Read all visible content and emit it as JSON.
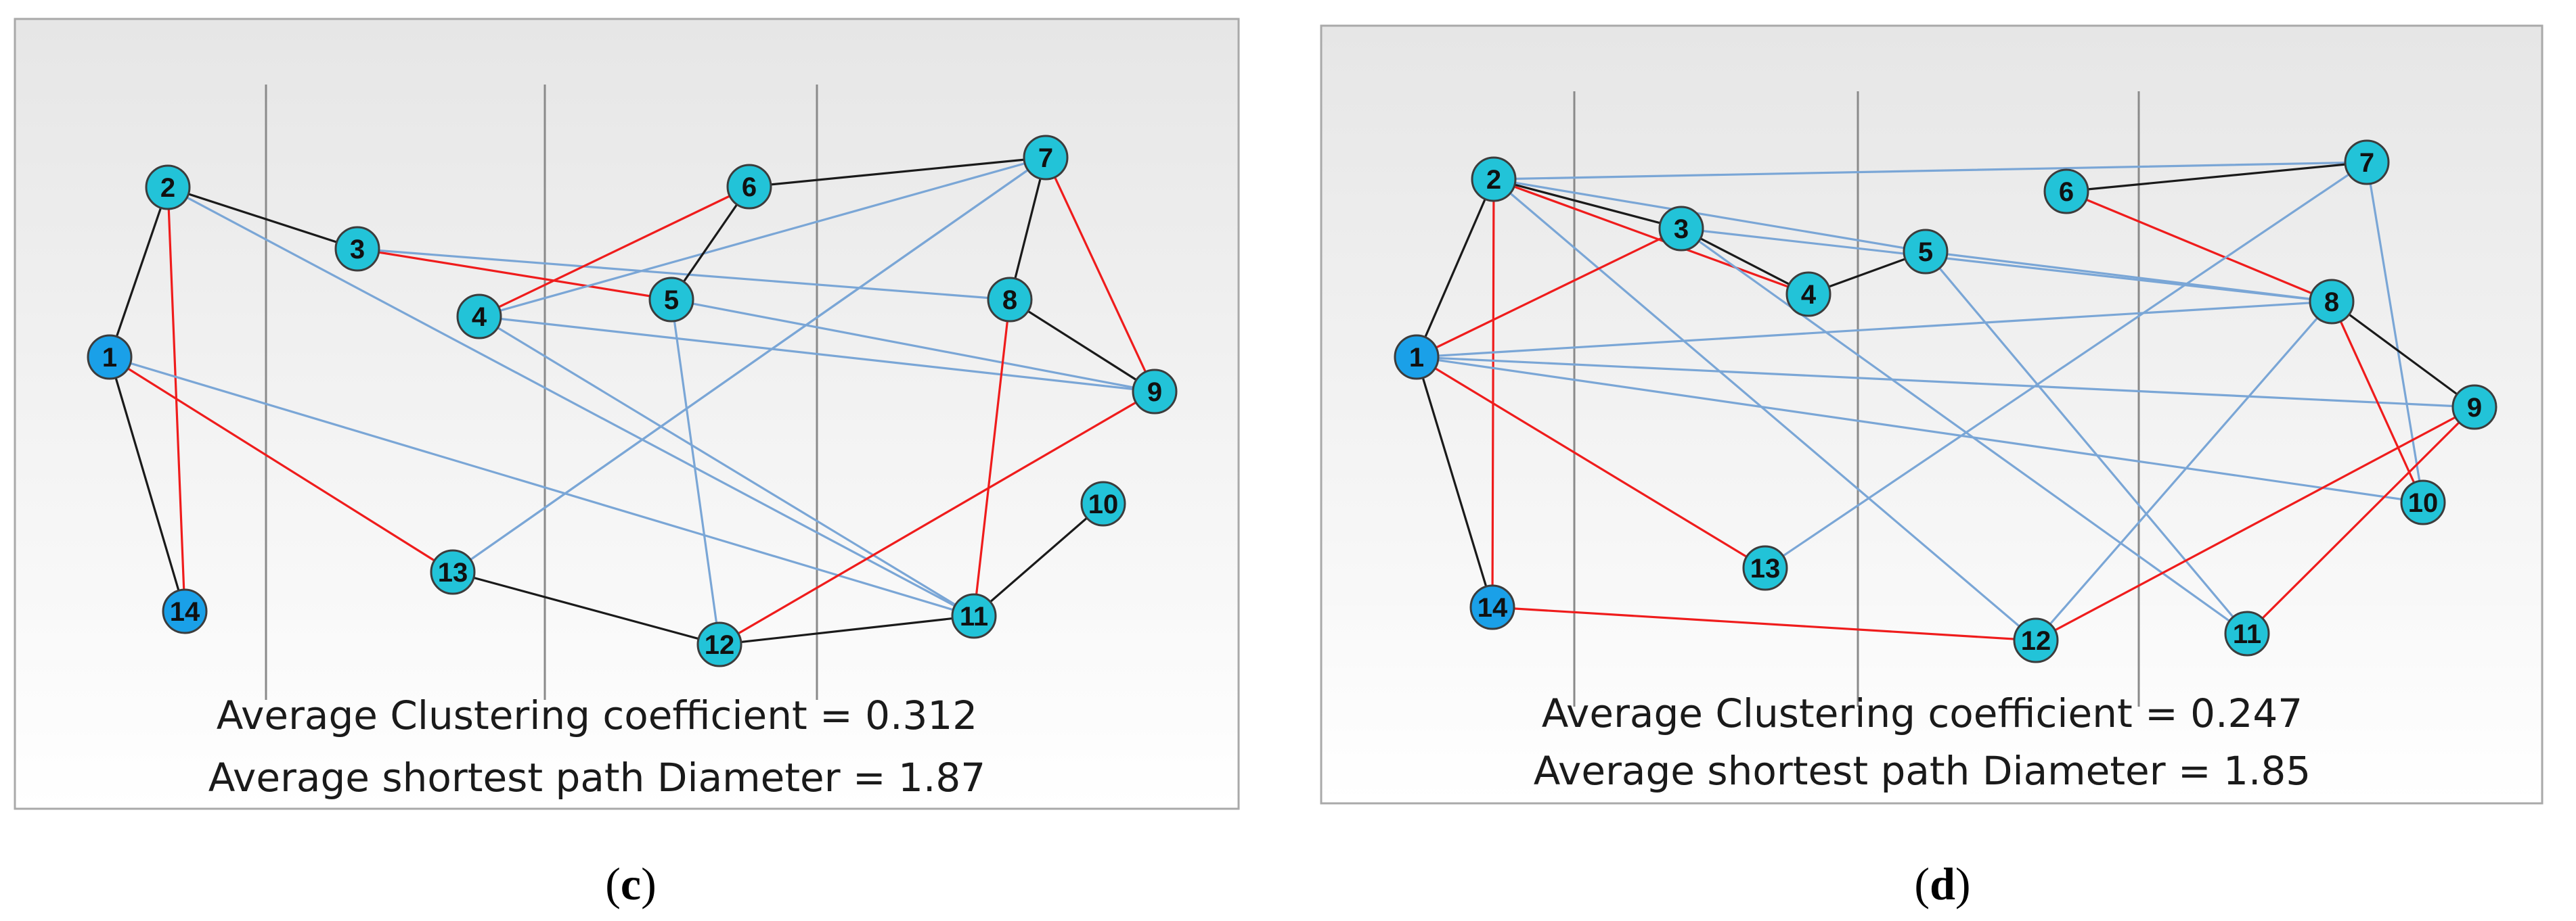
{
  "colors": {
    "red_edge": "#ef1c1c",
    "black_edge": "#1a1a1a",
    "blue_edge": "#7aa6d6",
    "node_cyan": "#22c3d8",
    "node_blue": "#1aa0e8"
  },
  "panels": [
    {
      "id": "c",
      "caption_letter": "c",
      "stats": {
        "clustering": "Average Clustering coefficient = 0.312",
        "shortest_path": "Average shortest path Diameter = 1.87"
      },
      "nodes": [
        {
          "id": "1",
          "label": "1",
          "tone": "blue"
        },
        {
          "id": "2",
          "label": "2",
          "tone": "cyan"
        },
        {
          "id": "3",
          "label": "3",
          "tone": "cyan"
        },
        {
          "id": "4",
          "label": "4",
          "tone": "cyan"
        },
        {
          "id": "5",
          "label": "5",
          "tone": "cyan"
        },
        {
          "id": "6",
          "label": "6",
          "tone": "cyan"
        },
        {
          "id": "7",
          "label": "7",
          "tone": "cyan"
        },
        {
          "id": "8",
          "label": "8",
          "tone": "cyan"
        },
        {
          "id": "9",
          "label": "9",
          "tone": "cyan"
        },
        {
          "id": "10",
          "label": "10",
          "tone": "cyan"
        },
        {
          "id": "11",
          "label": "11",
          "tone": "cyan"
        },
        {
          "id": "12",
          "label": "12",
          "tone": "cyan"
        },
        {
          "id": "13",
          "label": "13",
          "tone": "cyan"
        },
        {
          "id": "14",
          "label": "14",
          "tone": "blue"
        }
      ],
      "edges": [
        {
          "from": "1",
          "to": "2",
          "color": "black"
        },
        {
          "from": "1",
          "to": "14",
          "color": "black"
        },
        {
          "from": "2",
          "to": "14",
          "color": "red"
        },
        {
          "from": "2",
          "to": "3",
          "color": "black"
        },
        {
          "from": "2",
          "to": "11",
          "color": "blue"
        },
        {
          "from": "1",
          "to": "13",
          "color": "red"
        },
        {
          "from": "1",
          "to": "11",
          "color": "blue"
        },
        {
          "from": "3",
          "to": "5",
          "color": "red"
        },
        {
          "from": "3",
          "to": "8",
          "color": "blue"
        },
        {
          "from": "4",
          "to": "6",
          "color": "red"
        },
        {
          "from": "4",
          "to": "7",
          "color": "blue"
        },
        {
          "from": "4",
          "to": "9",
          "color": "blue"
        },
        {
          "from": "4",
          "to": "11",
          "color": "blue"
        },
        {
          "from": "5",
          "to": "6",
          "color": "black"
        },
        {
          "from": "5",
          "to": "12",
          "color": "blue"
        },
        {
          "from": "5",
          "to": "9",
          "color": "blue"
        },
        {
          "from": "6",
          "to": "7",
          "color": "black"
        },
        {
          "from": "7",
          "to": "8",
          "color": "black"
        },
        {
          "from": "7",
          "to": "9",
          "color": "red"
        },
        {
          "from": "7",
          "to": "13",
          "color": "blue"
        },
        {
          "from": "8",
          "to": "9",
          "color": "black"
        },
        {
          "from": "8",
          "to": "11",
          "color": "red"
        },
        {
          "from": "9",
          "to": "12",
          "color": "red"
        },
        {
          "from": "10",
          "to": "11",
          "color": "black"
        },
        {
          "from": "13",
          "to": "12",
          "color": "black"
        },
        {
          "from": "12",
          "to": "11",
          "color": "black"
        },
        {
          "from": "13",
          "to": "7",
          "color": "blue"
        }
      ]
    },
    {
      "id": "d",
      "caption_letter": "d",
      "stats": {
        "clustering": "Average Clustering coefficient = 0.247",
        "shortest_path": "Average shortest path Diameter = 1.85"
      },
      "nodes": [
        {
          "id": "1",
          "label": "1",
          "tone": "blue"
        },
        {
          "id": "2",
          "label": "2",
          "tone": "cyan"
        },
        {
          "id": "3",
          "label": "3",
          "tone": "cyan"
        },
        {
          "id": "4",
          "label": "4",
          "tone": "cyan"
        },
        {
          "id": "5",
          "label": "5",
          "tone": "cyan"
        },
        {
          "id": "6",
          "label": "6",
          "tone": "cyan"
        },
        {
          "id": "7",
          "label": "7",
          "tone": "cyan"
        },
        {
          "id": "8",
          "label": "8",
          "tone": "cyan"
        },
        {
          "id": "9",
          "label": "9",
          "tone": "cyan"
        },
        {
          "id": "10",
          "label": "10",
          "tone": "cyan"
        },
        {
          "id": "11",
          "label": "11",
          "tone": "cyan"
        },
        {
          "id": "12",
          "label": "12",
          "tone": "cyan"
        },
        {
          "id": "13",
          "label": "13",
          "tone": "cyan"
        },
        {
          "id": "14",
          "label": "14",
          "tone": "blue"
        }
      ],
      "edges": [
        {
          "from": "1",
          "to": "2",
          "color": "black"
        },
        {
          "from": "1",
          "to": "14",
          "color": "black"
        },
        {
          "from": "2",
          "to": "14",
          "color": "red"
        },
        {
          "from": "2",
          "to": "3",
          "color": "black"
        },
        {
          "from": "2",
          "to": "4",
          "color": "red"
        },
        {
          "from": "2",
          "to": "7",
          "color": "blue"
        },
        {
          "from": "2",
          "to": "5",
          "color": "blue"
        },
        {
          "from": "2",
          "to": "12",
          "color": "blue"
        },
        {
          "from": "1",
          "to": "3",
          "color": "red"
        },
        {
          "from": "1",
          "to": "13",
          "color": "red"
        },
        {
          "from": "1",
          "to": "8",
          "color": "blue"
        },
        {
          "from": "1",
          "to": "9",
          "color": "blue"
        },
        {
          "from": "1",
          "to": "10",
          "color": "blue"
        },
        {
          "from": "3",
          "to": "4",
          "color": "black"
        },
        {
          "from": "3",
          "to": "11",
          "color": "blue"
        },
        {
          "from": "4",
          "to": "5",
          "color": "black"
        },
        {
          "from": "5",
          "to": "8",
          "color": "blue"
        },
        {
          "from": "5",
          "to": "11",
          "color": "blue"
        },
        {
          "from": "6",
          "to": "7",
          "color": "black"
        },
        {
          "from": "6",
          "to": "8",
          "color": "red"
        },
        {
          "from": "7",
          "to": "10",
          "color": "blue"
        },
        {
          "from": "7",
          "to": "13",
          "color": "blue"
        },
        {
          "from": "8",
          "to": "9",
          "color": "black"
        },
        {
          "from": "8",
          "to": "10",
          "color": "red"
        },
        {
          "from": "8",
          "to": "12",
          "color": "blue"
        },
        {
          "from": "9",
          "to": "11",
          "color": "red"
        },
        {
          "from": "9",
          "to": "12",
          "color": "red"
        },
        {
          "from": "14",
          "to": "12",
          "color": "red"
        },
        {
          "from": "3",
          "to": "8",
          "color": "blue"
        }
      ]
    }
  ]
}
